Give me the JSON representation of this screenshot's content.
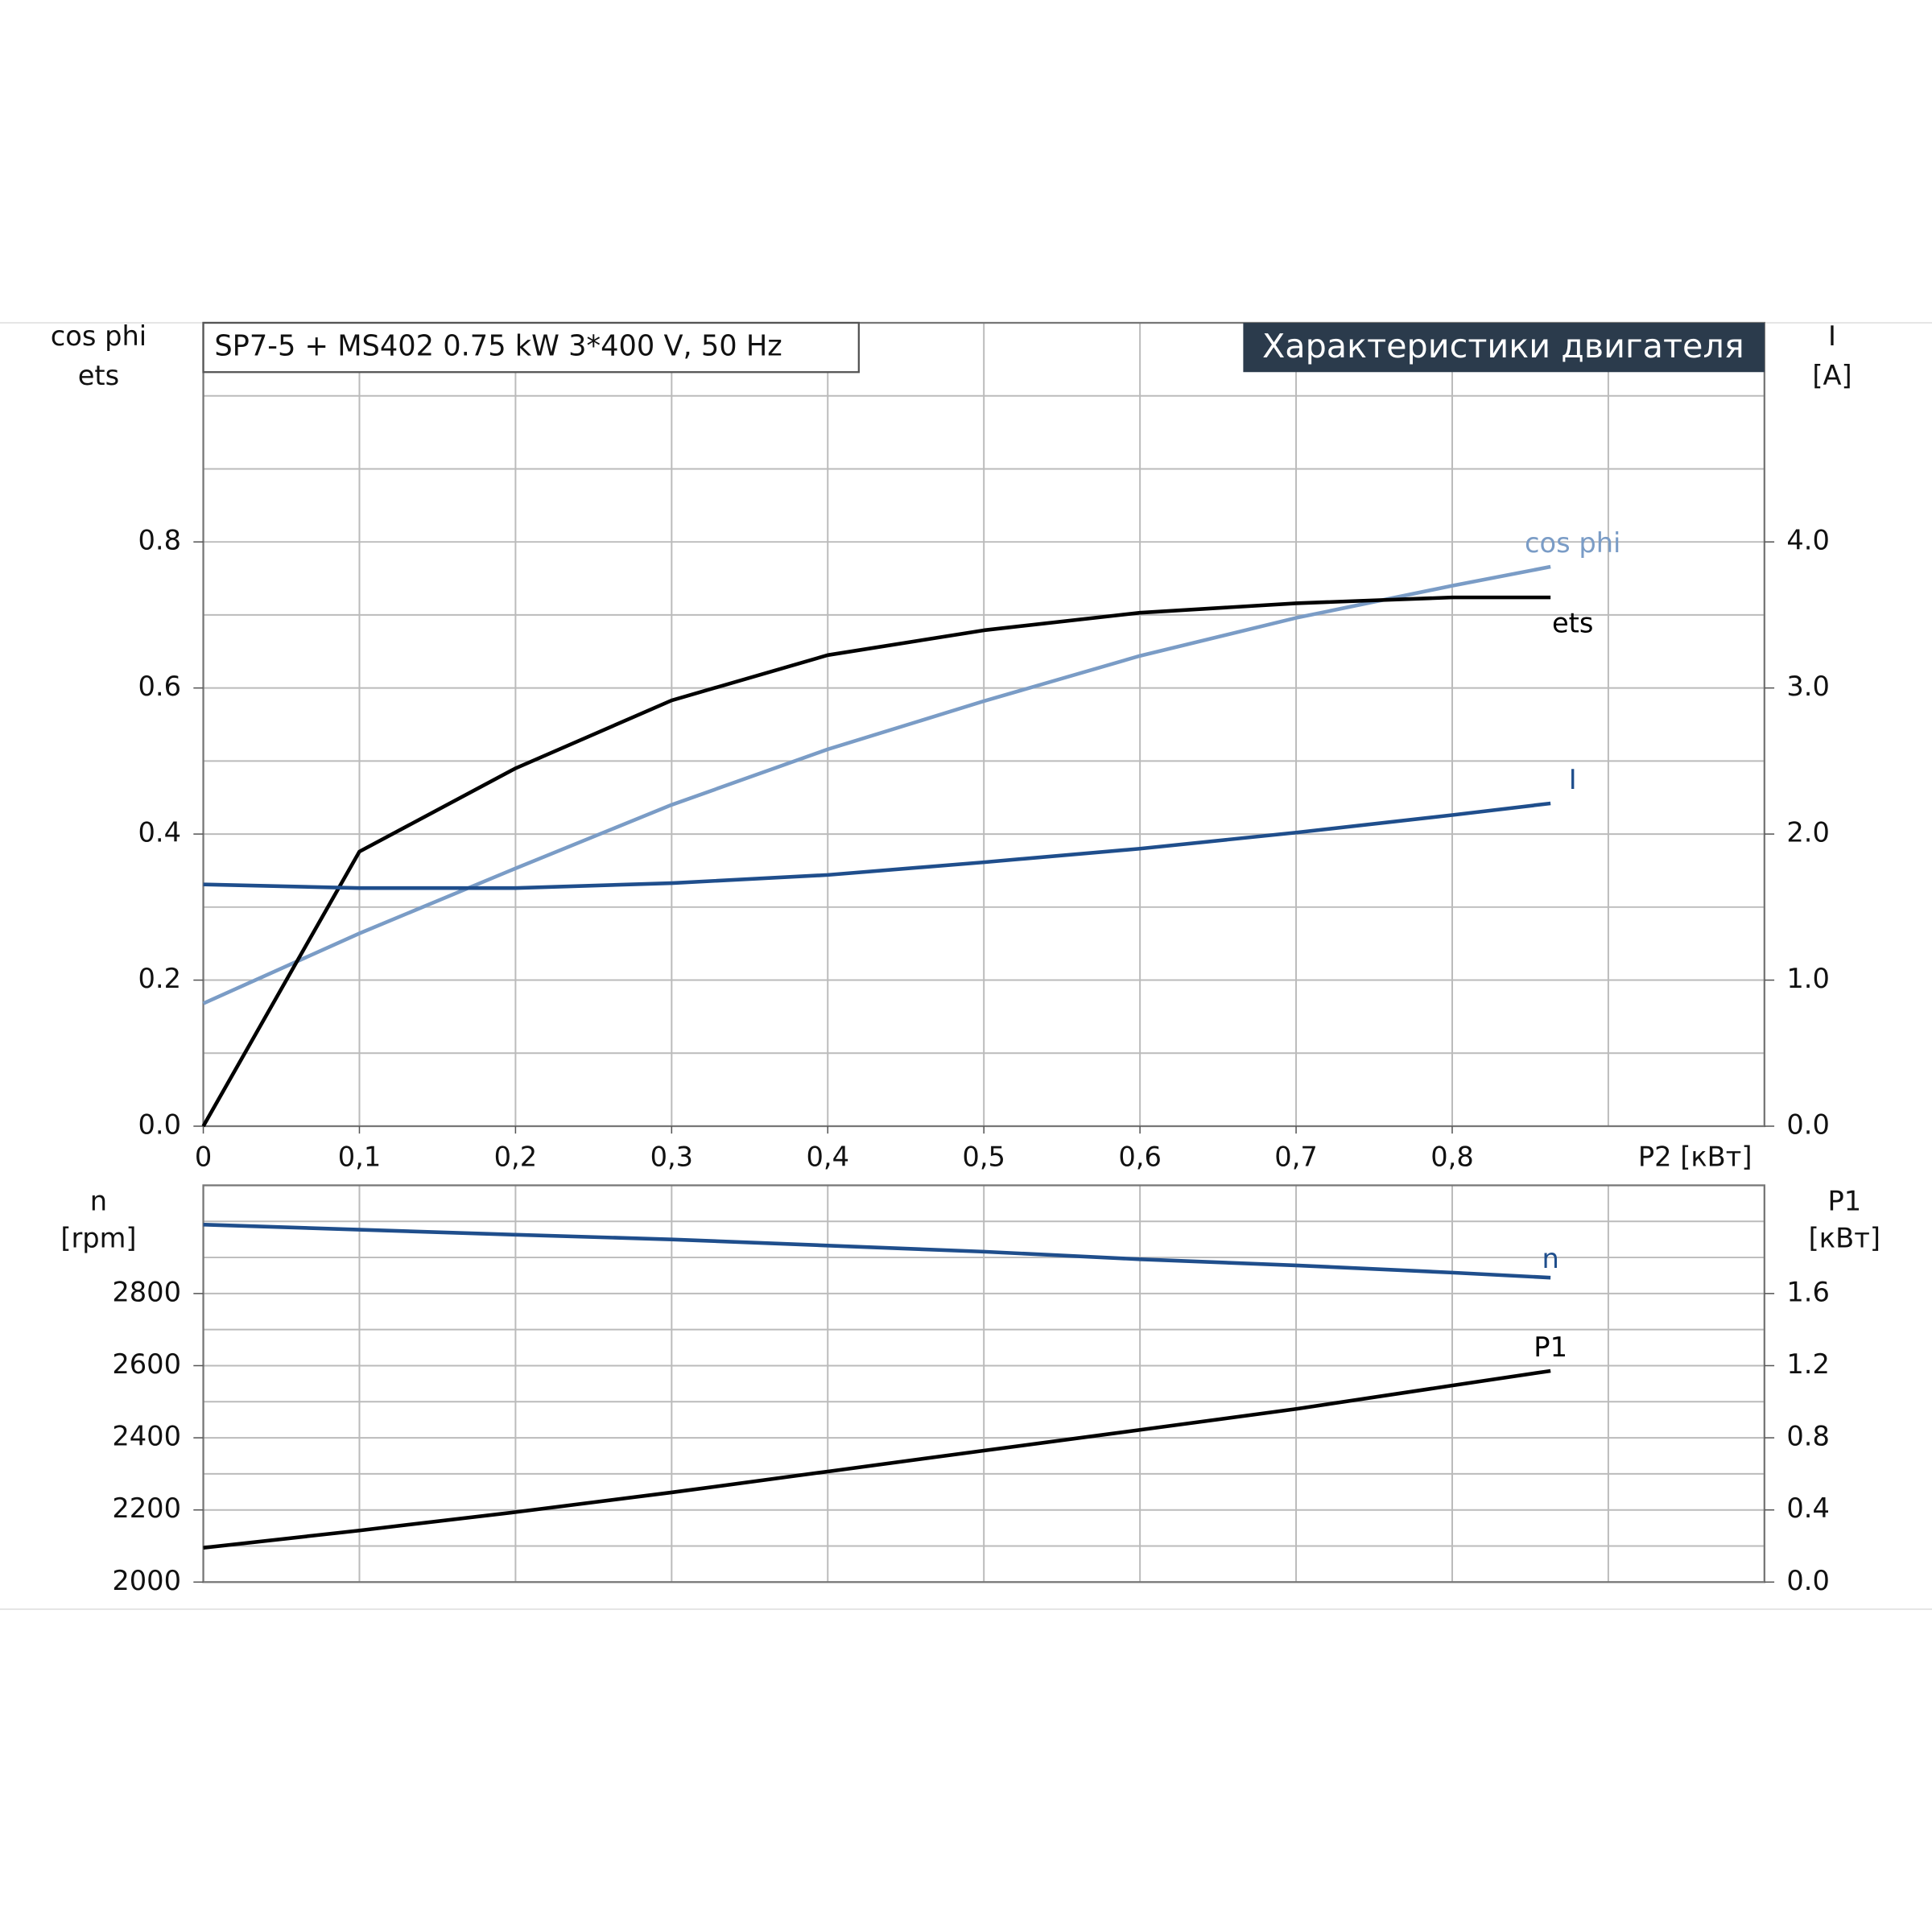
{
  "chart_data": [
    {
      "type": "line",
      "title": "SP7-5 + MS402   0.75 kW   3*400 V, 50 Hz",
      "subtitle": "Характеристики двигателя",
      "ylabel": [
        "cos phi",
        "ets"
      ],
      "y2label": [
        "I",
        "[A]"
      ],
      "xlabel": "P2 [кВт]",
      "x": [
        0,
        0.1,
        0.2,
        0.3,
        0.4,
        0.5,
        0.6,
        0.7,
        0.8,
        0.863
      ],
      "series": [
        {
          "name": "cos phi",
          "color": "#7a9cc6",
          "values": [
            0.168,
            0.264,
            0.353,
            0.44,
            0.516,
            0.582,
            0.644,
            0.696,
            0.74,
            0.766
          ]
        },
        {
          "name": "ets",
          "color": "#000000",
          "values": [
            0,
            0.376,
            0.49,
            0.583,
            0.645,
            0.679,
            0.703,
            0.716,
            0.724,
            0.724
          ]
        },
        {
          "name": "I",
          "color": "#1f4e8c",
          "axis": "y2",
          "values": [
            1.655,
            1.63,
            1.63,
            1.664,
            1.72,
            1.807,
            1.9,
            2.01,
            2.13,
            2.21
          ]
        }
      ],
      "xlim": [
        0,
        1.0
      ],
      "xticks": [
        0,
        {
          "value": 0.1,
          "label": "0,1"
        },
        {
          "value": 0.2,
          "label": "0,2"
        },
        {
          "value": 0.3,
          "label": "0,3"
        },
        {
          "value": 0.4,
          "label": "0,4"
        },
        {
          "value": 0.5,
          "label": "0,5"
        },
        {
          "value": 0.6,
          "label": "0,6"
        },
        {
          "value": 0.7,
          "label": "0,7"
        },
        {
          "value": 0.8,
          "label": "0,8"
        }
      ],
      "xgrid": [
        0.1,
        0.2,
        0.3,
        0.4,
        0.5,
        0.6,
        0.7,
        0.8,
        0.9
      ],
      "ylim": [
        0,
        1.1
      ],
      "yticks": [
        {
          "value": 0,
          "label": "0.0"
        },
        0.2,
        0.4,
        0.6,
        0.8
      ],
      "ygrid": [
        0.1,
        0.2,
        0.3,
        0.4,
        0.5,
        0.6,
        0.7,
        0.8,
        0.9,
        1.0
      ],
      "y2lim": [
        0,
        5.5
      ],
      "y2ticks": [
        {
          "value": 0,
          "label": "0.0"
        },
        {
          "value": 1,
          "label": "1.0"
        },
        {
          "value": 2,
          "label": "2.0"
        },
        {
          "value": 3,
          "label": "3.0"
        },
        {
          "value": 4,
          "label": "4.0"
        }
      ],
      "grid": true
    },
    {
      "type": "line",
      "ylabel": [
        "n",
        "[rpm]"
      ],
      "y2label": [
        "P1",
        "[кВт]"
      ],
      "x": [
        0,
        0.1,
        0.2,
        0.3,
        0.4,
        0.5,
        0.6,
        0.7,
        0.8,
        0.863
      ],
      "series": [
        {
          "name": "n",
          "color": "#1f4e8c",
          "values": [
            2991,
            2977,
            2963,
            2950,
            2933,
            2916,
            2895,
            2878,
            2858,
            2844
          ]
        },
        {
          "name": "P1",
          "color": "#000000",
          "axis": "y2",
          "values": [
            0.19,
            0.286,
            0.388,
            0.497,
            0.613,
            0.729,
            0.844,
            0.96,
            1.09,
            1.171
          ]
        }
      ],
      "xlim": [
        0,
        1.0
      ],
      "xgrid": [
        0.1,
        0.2,
        0.3,
        0.4,
        0.5,
        0.6,
        0.7,
        0.8,
        0.9
      ],
      "ylim": [
        2000,
        3100
      ],
      "yticks": [
        2000,
        2200,
        2400,
        2600,
        2800
      ],
      "ygrid": [
        2100,
        2200,
        2300,
        2400,
        2500,
        2600,
        2700,
        2800,
        2900,
        3000
      ],
      "y2lim": [
        0,
        2.2
      ],
      "y2ticks": [
        {
          "value": 0,
          "label": "0.0"
        },
        0.4,
        0.8,
        1.2,
        1.6
      ],
      "grid": true
    }
  ]
}
